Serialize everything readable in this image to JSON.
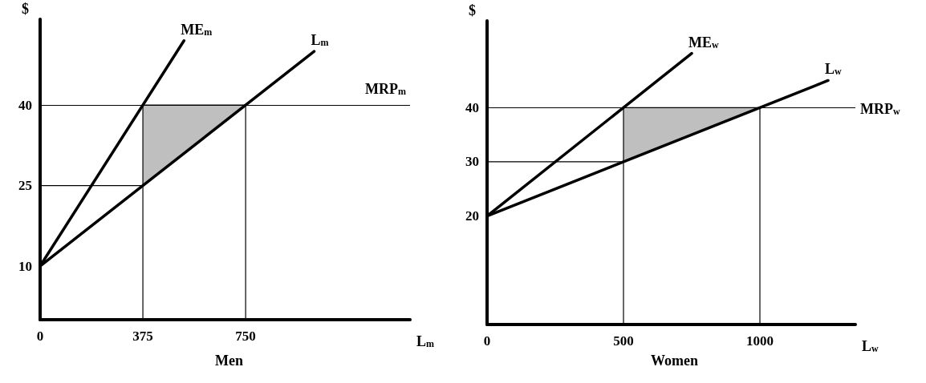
{
  "chart_data": [
    {
      "type": "line",
      "title": "Men",
      "xlabel": "L$_{m}$",
      "ylabel": "$",
      "xlim": [
        0,
        1350
      ],
      "xticks": [
        0,
        375,
        750
      ],
      "ylim": [
        0,
        56
      ],
      "yticks": [
        10,
        25,
        40
      ],
      "series": [
        {
          "color": "#000000",
          "x": [
            375,
            560,
            750
          ],
          "values": [
            40,
            40,
            40
          ],
          "lower": [
            25,
            32.5,
            40
          ],
          "upper": [
            40,
            40,
            40
          ]
        },
        {
          "name": "ME$_{m}$",
          "color": "#000000",
          "x": [
            0,
            525
          ],
          "values": [
            10,
            52
          ]
        },
        {
          "name": "L$_{m}$",
          "color": "#000000",
          "x": [
            0,
            1000
          ],
          "values": [
            10,
            50
          ]
        },
        {
          "color": "#000000",
          "x": [
            375,
            375
          ],
          "values": [
            0,
            40
          ]
        },
        {
          "color": "#000000",
          "x": [
            750,
            750
          ],
          "values": [
            0,
            40
          ]
        },
        {
          "color": "#000000",
          "x": [
            0,
            375
          ],
          "values": [
            25,
            25
          ]
        }
      ],
      "ref_lines": [
        {
          "axis": "y",
          "value": 40,
          "label": "MRP$_{m}$",
          "color": "#000000"
        }
      ]
    },
    {
      "type": "line",
      "title": "Women",
      "xlabel": "L$_{w}$",
      "ylabel": "$",
      "xlim": [
        0,
        1350
      ],
      "xticks": [
        0,
        500,
        1000
      ],
      "ylim": [
        0,
        56
      ],
      "yticks": [
        20,
        30,
        40
      ],
      "series": [
        {
          "color": "#000000",
          "x": [
            500,
            750,
            1000
          ],
          "values": [
            40,
            40,
            40
          ],
          "lower": [
            30,
            35,
            40
          ],
          "upper": [
            40,
            40,
            40
          ]
        },
        {
          "name": "ME$_{w}$",
          "color": "#000000",
          "x": [
            0,
            750
          ],
          "values": [
            20,
            50
          ]
        },
        {
          "name": "L$_{w}$",
          "color": "#000000",
          "x": [
            0,
            1250
          ],
          "values": [
            20,
            45
          ]
        },
        {
          "color": "#000000",
          "x": [
            500,
            500
          ],
          "values": [
            0,
            40
          ]
        },
        {
          "color": "#000000",
          "x": [
            1000,
            1000
          ],
          "values": [
            0,
            40
          ]
        },
        {
          "color": "#000000",
          "x": [
            0,
            500
          ],
          "values": [
            30,
            30
          ]
        }
      ],
      "ref_lines": [
        {
          "axis": "y",
          "value": 40,
          "label": "MRP$_{w}$",
          "color": "#000000"
        }
      ]
    }
  ]
}
